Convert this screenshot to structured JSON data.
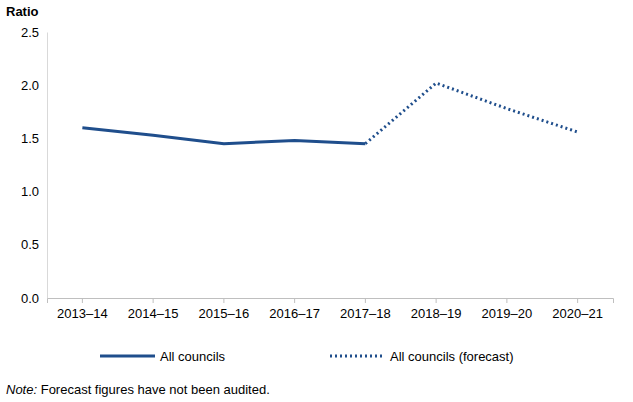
{
  "chart_data": {
    "type": "line",
    "y_label": "Ratio",
    "categories": [
      "2013–14",
      "2014–15",
      "2015–16",
      "2016–17",
      "2017–18",
      "2018–19",
      "2019–20",
      "2020–21"
    ],
    "series": [
      {
        "name": "All councils",
        "color": "#1f4e8c",
        "line_style": "solid",
        "values": [
          1.6,
          1.53,
          1.45,
          1.48,
          1.45,
          null,
          null,
          null
        ]
      },
      {
        "name": "All councils (forecast)",
        "color": "#1f4e8c",
        "line_style": "dotted",
        "values": [
          null,
          null,
          null,
          null,
          1.45,
          2.02,
          1.78,
          1.56
        ]
      }
    ],
    "ylim": [
      0,
      2.5
    ],
    "yticks": [
      {
        "value": 0,
        "label": "0.0"
      },
      0.5,
      {
        "value": 1,
        "label": "1.0"
      },
      1.5,
      {
        "value": 2,
        "label": "2.0"
      },
      2.5
    ],
    "grid": false,
    "note": "Note: Forecast figures have not been audited."
  }
}
